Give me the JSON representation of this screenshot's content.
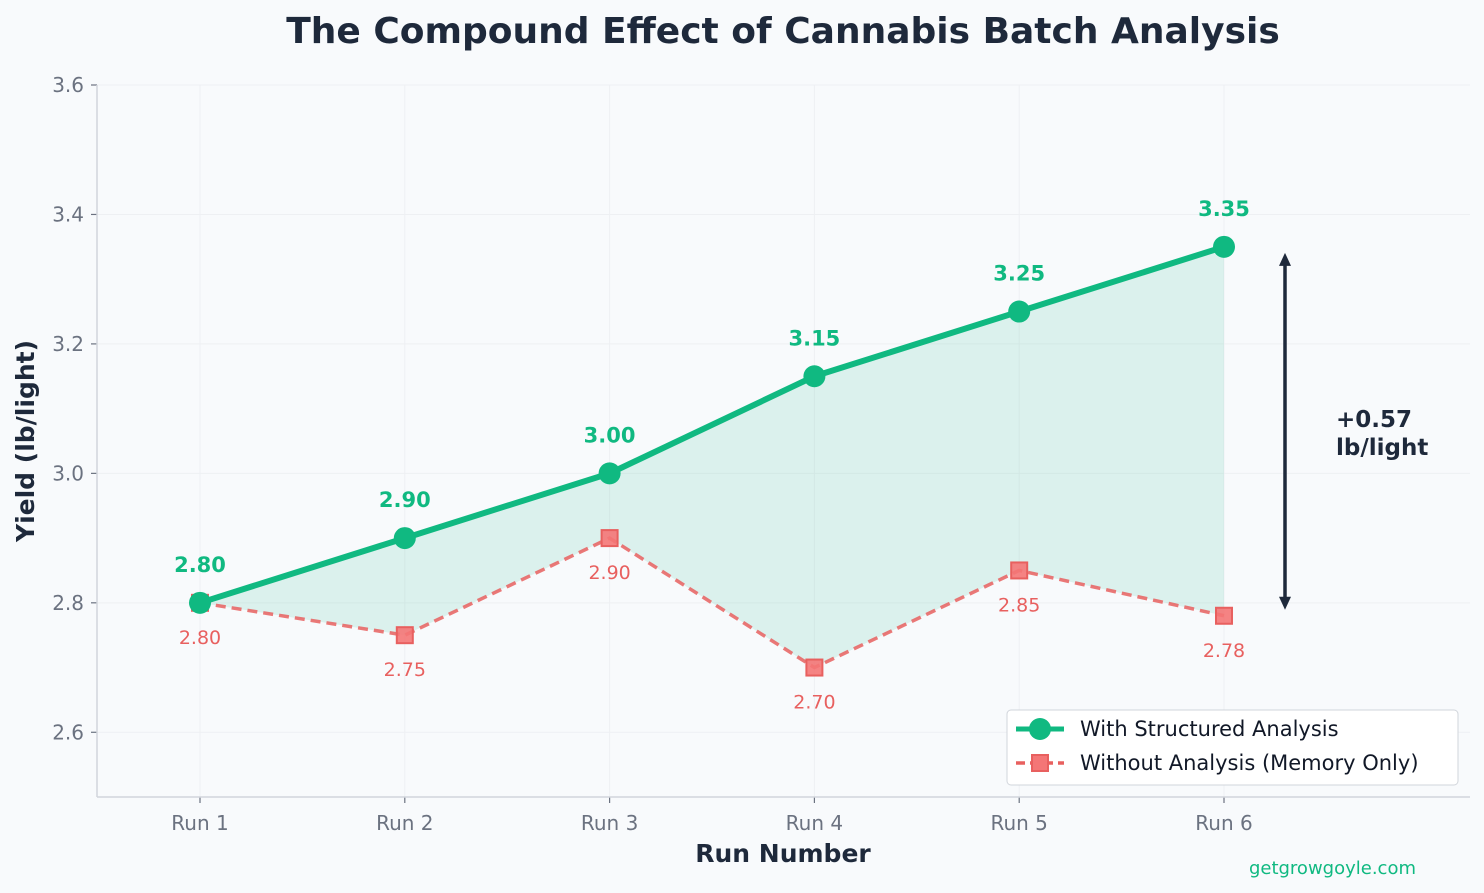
{
  "chart_data": {
    "type": "line",
    "title": "The Compound Effect of Cannabis Batch Analysis",
    "xlabel": "Run Number",
    "ylabel": "Yield (lb/light)",
    "categories": [
      "Run 1",
      "Run 2",
      "Run 3",
      "Run 4",
      "Run 5",
      "Run 6"
    ],
    "ylim": [
      2.5,
      3.6
    ],
    "yticks": [
      "2.6",
      "2.8",
      "3.0",
      "3.2",
      "3.4",
      "3.6"
    ],
    "grid": true,
    "legend_position": "bottom-right",
    "series": [
      {
        "name": "With Structured Analysis",
        "values": [
          2.8,
          2.9,
          3.0,
          3.15,
          3.25,
          3.35
        ],
        "labels": [
          "2.80",
          "2.90",
          "3.00",
          "3.15",
          "3.25",
          "3.35"
        ],
        "color": "#10b981",
        "marker": "circle",
        "line_style": "solid"
      },
      {
        "name": "Without Analysis (Memory Only)",
        "values": [
          2.8,
          2.75,
          2.9,
          2.7,
          2.85,
          2.78
        ],
        "labels": [
          "2.80",
          "2.75",
          "2.90",
          "2.70",
          "2.85",
          "2.78"
        ],
        "color": "#e8605f",
        "marker": "square",
        "line_style": "dashed"
      }
    ],
    "annotation": {
      "lines": [
        "+0.57",
        "lb/light"
      ],
      "from_value": 2.78,
      "to_value": 3.35
    },
    "credit": "getgrowgoyle.com"
  }
}
